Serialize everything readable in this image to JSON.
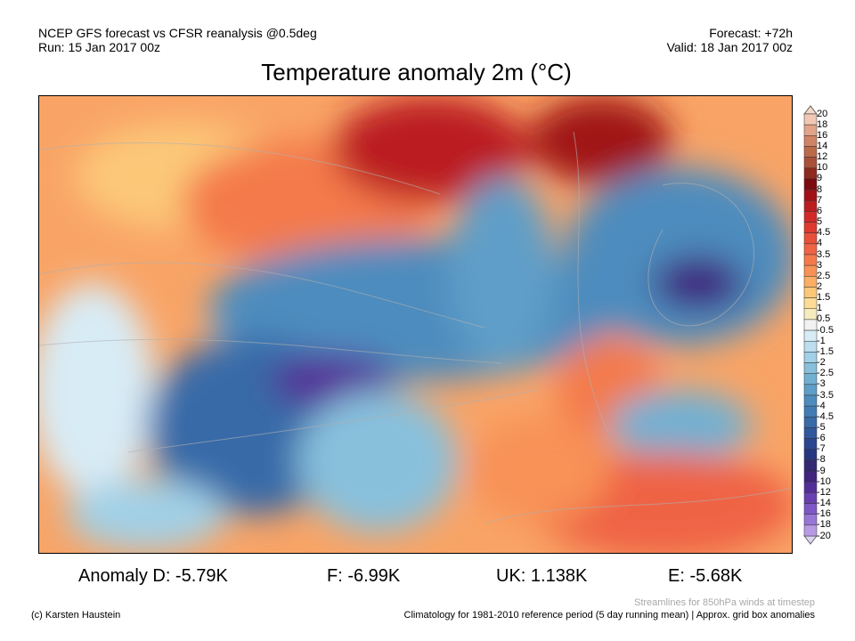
{
  "header": {
    "line1": "NCEP GFS forecast vs CFSR reanalysis @0.5deg",
    "line2": "Run: 15 Jan 2017 00z",
    "forecast": "Forecast: +72h",
    "valid": "Valid: 18 Jan 2017 00z"
  },
  "title": "Temperature anomaly 2m (°C)",
  "colorbar": {
    "labels": [
      "20",
      "18",
      "16",
      "14",
      "12",
      "10",
      "9",
      "8",
      "7",
      "6",
      "5",
      "4.5",
      "4",
      "3.5",
      "3",
      "2.5",
      "2",
      "1.5",
      "1",
      "0.5",
      "-0.5",
      "-1",
      "-1.5",
      "-2",
      "-2.5",
      "-3",
      "-3.5",
      "-4",
      "-4.5",
      "-5",
      "-6",
      "-7",
      "-8",
      "-9",
      "-10",
      "-12",
      "-14",
      "-16",
      "-18",
      "-20"
    ],
    "colors": [
      "#f0c8b4",
      "#e1a48a",
      "#cf8466",
      "#bb6a4a",
      "#a8503a",
      "#8e2a1e",
      "#7d0a10",
      "#a01218",
      "#bb1e20",
      "#d22a28",
      "#de3a30",
      "#e8503a",
      "#ef6444",
      "#f47a4c",
      "#f89256",
      "#fbae64",
      "#fcc878",
      "#fddc98",
      "#f6ecbe",
      "#f2f2f2",
      "#d8ecf6",
      "#bcdeee",
      "#a2d0e6",
      "#88c0dc",
      "#72b0d2",
      "#5e9ec8",
      "#4e8cbe",
      "#427cb4",
      "#386aa8",
      "#30589c",
      "#2a4690",
      "#283682",
      "#322874",
      "#40247e",
      "#542e98",
      "#6840b0",
      "#7e58c6",
      "#9876d6",
      "#b89ae4",
      "#d4c0f0"
    ],
    "low_end_color": "#ddd4f4",
    "high_end_color": "#f4d8c8"
  },
  "anomalies": {
    "d": "Anomaly D: -5.79K",
    "f": "F: -6.99K",
    "uk": "UK: 1.138K",
    "e": "E: -5.68K"
  },
  "footer": {
    "credit": "(c) Karsten Haustein",
    "streamlines": "Streamlines for 850hPa winds at timestep",
    "climatology": "Climatology for 1981-2010 reference period (5 day running mean) | Approx. grid box anomalies"
  }
}
